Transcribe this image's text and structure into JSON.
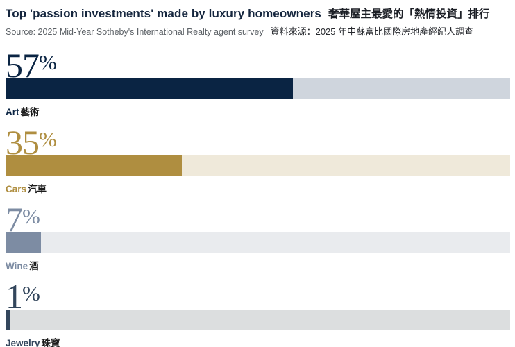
{
  "header": {
    "title_en": "Top 'passion investments' made by luxury homeowners",
    "title_zh": "奢華屋主最愛的「熱情投資」排行",
    "source_en": "Source: 2025 Mid-Year Sotheby's International Realty agent survey",
    "source_zh": "資料來源：2025 年中蘇富比國際房地產經紀人調查"
  },
  "chart_data": {
    "type": "bar",
    "orientation": "horizontal",
    "title": "Top 'passion investments' made by luxury homeowners 奢華屋主最愛的「熱情投資」排行",
    "source": "Source: 2025 Mid-Year Sotheby's International Realty agent survey 資料來源：2025 年中蘇富比國際房地產經紀人調查",
    "categories": [
      "Art 藝術",
      "Cars 汽車",
      "Wine 酒",
      "Jewelry 珠寶"
    ],
    "values": [
      57,
      35,
      7,
      1
    ],
    "xlim": [
      0,
      100
    ],
    "percent_sign": "%",
    "legend": "none",
    "grid": false,
    "bars": [
      {
        "label_en": "Art",
        "label_zh": "藝術",
        "value": 57,
        "value_label": "57",
        "bar_color": "#0a2443",
        "track_color": "#cfd5dd"
      },
      {
        "label_en": "Cars",
        "label_zh": "汽車",
        "value": 35,
        "value_label": "35",
        "bar_color": "#af8e40",
        "track_color": "#efe9da"
      },
      {
        "label_en": "Wine",
        "label_zh": "酒",
        "value": 7,
        "value_label": "7",
        "bar_color": "#7d8ca3",
        "track_color": "#e9ebee"
      },
      {
        "label_en": "Jewelry",
        "label_zh": "珠寶",
        "value": 1,
        "value_label": "1",
        "bar_color": "#33465c",
        "track_color": "#dcdedf"
      }
    ]
  }
}
